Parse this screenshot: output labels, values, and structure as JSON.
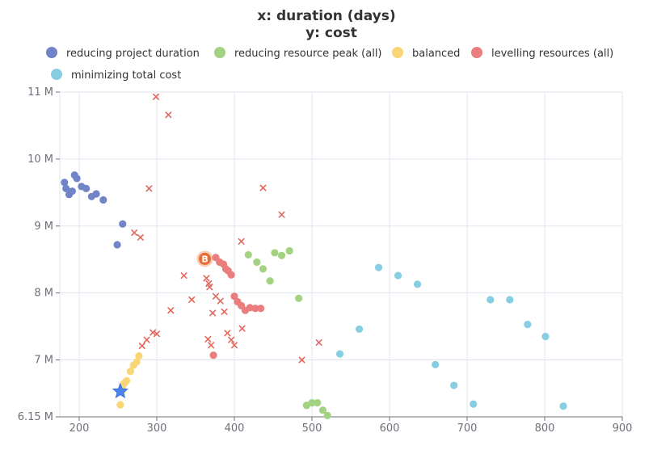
{
  "chart_data": {
    "type": "scatter",
    "title": "x: duration (days)",
    "subtitle": "y: cost",
    "xlim": [
      175,
      900
    ],
    "ylim": [
      6150000,
      11000000
    ],
    "x_ticks": [
      200,
      300,
      400,
      500,
      600,
      700,
      800,
      900
    ],
    "y_ticks": [
      {
        "value": 11000000,
        "label": "11 M"
      },
      {
        "value": 10000000,
        "label": "10 M"
      },
      {
        "value": 9000000,
        "label": "9 M"
      },
      {
        "value": 8000000,
        "label": "8 M"
      },
      {
        "value": 7000000,
        "label": "7 M"
      },
      {
        "value": 6150000,
        "label": "6.15 M"
      }
    ],
    "grid": true,
    "legend_position": "top",
    "series": [
      {
        "name": "reducing project duration",
        "color": "#7284c8",
        "points": [
          [
            181,
            9650000
          ],
          [
            183,
            9560000
          ],
          [
            187,
            9470000
          ],
          [
            191,
            9520000
          ],
          [
            194,
            9760000
          ],
          [
            197,
            9710000
          ],
          [
            203,
            9590000
          ],
          [
            209,
            9560000
          ],
          [
            216,
            9440000
          ],
          [
            222,
            9480000
          ],
          [
            231,
            9390000
          ],
          [
            256,
            9030000
          ],
          [
            249,
            8720000
          ]
        ]
      },
      {
        "name": "reducing resource peak (all)",
        "color": "#a3d282",
        "points": [
          [
            418,
            8570000
          ],
          [
            429,
            8460000
          ],
          [
            437,
            8360000
          ],
          [
            446,
            8180000
          ],
          [
            452,
            8600000
          ],
          [
            461,
            8560000
          ],
          [
            471,
            8630000
          ],
          [
            483,
            7920000
          ],
          [
            493,
            6320000
          ],
          [
            500,
            6360000
          ],
          [
            507,
            6360000
          ],
          [
            514,
            6250000
          ],
          [
            520,
            6170000
          ]
        ]
      },
      {
        "name": "balanced",
        "color": "#f9d675",
        "points": [
          [
            253,
            6330000
          ],
          [
            256,
            6550000
          ],
          [
            258,
            6650000
          ],
          [
            261,
            6690000
          ],
          [
            266,
            6830000
          ],
          [
            270,
            6920000
          ],
          [
            274,
            6970000
          ],
          [
            277,
            7060000
          ],
          [
            256,
            6620000
          ]
        ]
      },
      {
        "name": "levelling resources (all)",
        "color": "#ea7d7e",
        "points": [
          [
            376,
            8530000
          ],
          [
            381,
            8460000
          ],
          [
            386,
            8430000
          ],
          [
            389,
            8360000
          ],
          [
            392,
            8330000
          ],
          [
            396,
            8270000
          ],
          [
            400,
            7950000
          ],
          [
            404,
            7870000
          ],
          [
            409,
            7810000
          ],
          [
            414,
            7740000
          ],
          [
            420,
            7780000
          ],
          [
            427,
            7770000
          ],
          [
            434,
            7770000
          ],
          [
            373,
            7070000
          ]
        ]
      },
      {
        "name": "minimizing total cost",
        "color": "#88cee2",
        "points": [
          [
            536,
            7090000
          ],
          [
            561,
            7460000
          ],
          [
            586,
            8380000
          ],
          [
            611,
            8260000
          ],
          [
            636,
            8130000
          ],
          [
            659,
            6930000
          ],
          [
            683,
            6620000
          ],
          [
            708,
            6340000
          ],
          [
            730,
            7900000
          ],
          [
            755,
            7900000
          ],
          [
            778,
            7530000
          ],
          [
            801,
            7350000
          ],
          [
            824,
            6310000
          ]
        ]
      },
      {
        "name": "",
        "marker": "cross",
        "color": "#e2685f",
        "points": [
          [
            299,
            10930000
          ],
          [
            315,
            10660000
          ],
          [
            290,
            9560000
          ],
          [
            271,
            8900000
          ],
          [
            279,
            8830000
          ],
          [
            281,
            7210000
          ],
          [
            287,
            7300000
          ],
          [
            295,
            7410000
          ],
          [
            300,
            7390000
          ],
          [
            318,
            7740000
          ],
          [
            335,
            8260000
          ],
          [
            345,
            7900000
          ],
          [
            364,
            8220000
          ],
          [
            367,
            8140000
          ],
          [
            368,
            8090000
          ],
          [
            372,
            7700000
          ],
          [
            376,
            7950000
          ],
          [
            382,
            7880000
          ],
          [
            387,
            7720000
          ],
          [
            391,
            7400000
          ],
          [
            396,
            7300000
          ],
          [
            400,
            7220000
          ],
          [
            409,
            8770000
          ],
          [
            410,
            7470000
          ],
          [
            437,
            9570000
          ],
          [
            461,
            9170000
          ],
          [
            487,
            7000000
          ],
          [
            509,
            7260000
          ],
          [
            366,
            7310000
          ],
          [
            370,
            7220000
          ]
        ]
      }
    ],
    "markers": [
      {
        "type": "pin",
        "label": "B",
        "x": 362,
        "y": 8510000,
        "color": "#e86d33"
      },
      {
        "type": "star",
        "x": 253,
        "y": 6530000,
        "color": "#4b82ec"
      }
    ]
  }
}
